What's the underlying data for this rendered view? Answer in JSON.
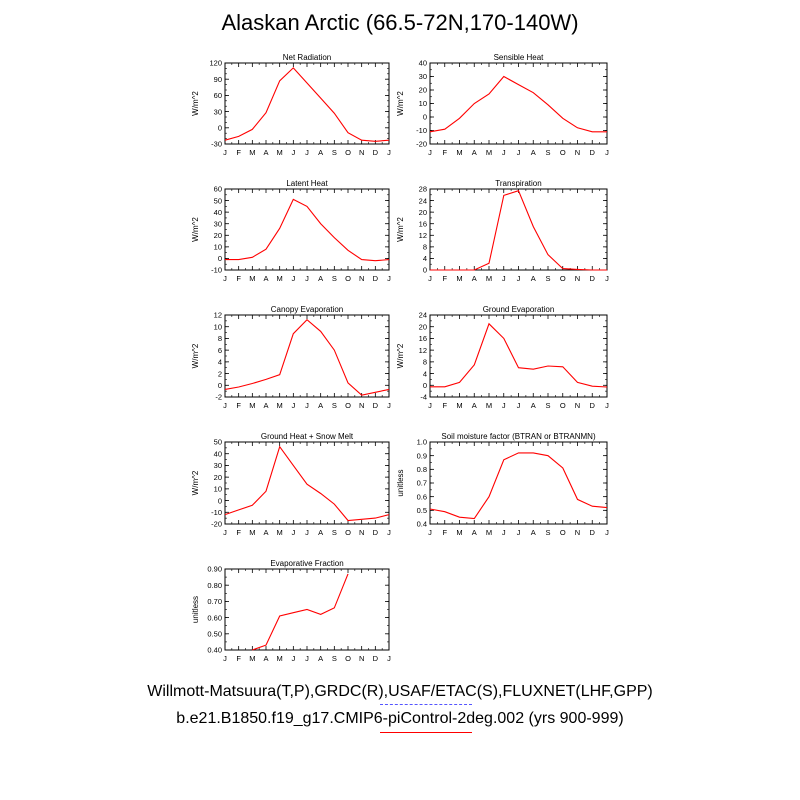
{
  "page": {
    "title": "Alaskan Arctic (66.5-72N,170-140W)"
  },
  "months": [
    "J",
    "F",
    "M",
    "A",
    "M",
    "J",
    "J",
    "A",
    "S",
    "O",
    "N",
    "D",
    "J"
  ],
  "legend": {
    "obs_label": "Willmott-Matsuura(T,P),GRDC(R),USAF/ETAC(S),FLUXNET(LHF,GPP)",
    "obs_color": "#5555ff",
    "model_label": "b.e21.B1850.f19_g17.CMIP6-piControl-2deg.002 (yrs 900-999)",
    "model_color": "#ff0000"
  },
  "chart_data": [
    {
      "type": "line",
      "title": "Net Radiation",
      "ylabel": "W/m^2",
      "ylim": [
        -30,
        120
      ],
      "yticks": [
        "-30",
        "0",
        "30",
        "60",
        "90",
        "120"
      ],
      "ytick_values": [
        -30,
        0,
        30,
        60,
        90,
        120
      ],
      "minor_step": 10,
      "series": [
        {
          "color": "#ff0000",
          "values": [
            -23,
            -16,
            -3,
            28,
            87,
            111,
            83,
            55,
            27,
            -9,
            -23,
            -25,
            -23
          ]
        }
      ]
    },
    {
      "type": "line",
      "title": "Sensible Heat",
      "ylabel": "W/m^2",
      "ylim": [
        -20,
        40
      ],
      "yticks": [
        "-20",
        "-10",
        "0",
        "10",
        "20",
        "30",
        "40"
      ],
      "ytick_values": [
        -20,
        -10,
        0,
        10,
        20,
        30,
        40
      ],
      "minor_step": 5,
      "series": [
        {
          "color": "#ff0000",
          "values": [
            -11,
            -9,
            -1,
            10,
            17,
            30,
            24,
            18,
            9,
            -1,
            -8,
            -11,
            -11
          ]
        }
      ]
    },
    {
      "type": "line",
      "title": "Latent Heat",
      "ylabel": "W/m^2",
      "ylim": [
        -10,
        60
      ],
      "yticks": [
        "-10",
        "0",
        "10",
        "20",
        "30",
        "40",
        "50",
        "60"
      ],
      "ytick_values": [
        -10,
        0,
        10,
        20,
        30,
        40,
        50,
        60
      ],
      "minor_step": 5,
      "series": [
        {
          "color": "#ff0000",
          "values": [
            -1,
            -1,
            1,
            8,
            26,
            51,
            45,
            30,
            18,
            7,
            -1,
            -2,
            -1
          ]
        }
      ]
    },
    {
      "type": "line",
      "title": "Transpiration",
      "ylabel": "W/m^2",
      "ylim": [
        0,
        28
      ],
      "yticks": [
        "0",
        "4",
        "8",
        "12",
        "16",
        "20",
        "24",
        "28"
      ],
      "ytick_values": [
        0,
        4,
        8,
        12,
        16,
        20,
        24,
        28
      ],
      "minor_step": 2,
      "series": [
        {
          "color": "#ff0000",
          "values": [
            0,
            0,
            0,
            0,
            2.3,
            25.8,
            27.4,
            15,
            5.3,
            0.5,
            0.2,
            0,
            0
          ]
        }
      ]
    },
    {
      "type": "line",
      "title": "Canopy Evaporation",
      "ylabel": "W/m^2",
      "ylim": [
        -2,
        12
      ],
      "yticks": [
        "-2",
        "0",
        "2",
        "4",
        "6",
        "8",
        "10",
        "12"
      ],
      "ytick_values": [
        -2,
        0,
        2,
        4,
        6,
        8,
        10,
        12
      ],
      "minor_step": 1,
      "series": [
        {
          "color": "#ff0000",
          "values": [
            -0.7,
            -0.3,
            0.3,
            1,
            1.8,
            8.8,
            11.2,
            9.2,
            6,
            0.4,
            -1.7,
            -1.2,
            -0.7
          ]
        }
      ]
    },
    {
      "type": "line",
      "title": "Ground Evaporation",
      "ylabel": "W/m^2",
      "ylim": [
        -4,
        24
      ],
      "yticks": [
        "-4",
        "0",
        "4",
        "8",
        "12",
        "16",
        "20",
        "24"
      ],
      "ytick_values": [
        -4,
        0,
        4,
        8,
        12,
        16,
        20,
        24
      ],
      "minor_step": 2,
      "series": [
        {
          "color": "#ff0000",
          "values": [
            -0.5,
            -0.5,
            1,
            7,
            21,
            16,
            6,
            5.5,
            6.6,
            6.3,
            1,
            -0.3,
            -0.6
          ]
        }
      ]
    },
    {
      "type": "line",
      "title": "Ground Heat + Snow Melt",
      "ylabel": "W/m^2",
      "ylim": [
        -20,
        50
      ],
      "yticks": [
        "-20",
        "-10",
        "0",
        "10",
        "20",
        "30",
        "40",
        "50"
      ],
      "ytick_values": [
        -20,
        -10,
        0,
        10,
        20,
        30,
        40,
        50
      ],
      "minor_step": 5,
      "series": [
        {
          "color": "#ff0000",
          "values": [
            -12,
            -8,
            -4,
            8,
            46,
            30,
            14,
            6,
            -3,
            -17,
            -16,
            -15,
            -12
          ]
        }
      ]
    },
    {
      "type": "line",
      "title": "Soil moisture factor (BTRAN or BTRANMN)",
      "ylabel": "unitless",
      "ylim": [
        0.4,
        1.0
      ],
      "yticks": [
        "0.4",
        "0.5",
        "0.6",
        "0.7",
        "0.8",
        "0.9",
        "1.0"
      ],
      "ytick_values": [
        0.4,
        0.5,
        0.6,
        0.7,
        0.8,
        0.9,
        1.0
      ],
      "minor_step": 0.05,
      "series": [
        {
          "color": "#ff0000",
          "values": [
            0.51,
            0.49,
            0.45,
            0.44,
            0.6,
            0.87,
            0.92,
            0.92,
            0.9,
            0.81,
            0.58,
            0.53,
            0.52
          ]
        }
      ]
    },
    {
      "type": "line",
      "title": "Evaporative Fraction",
      "ylabel": "unitless",
      "ylim": [
        0.4,
        0.9
      ],
      "yticks": [
        "0.40",
        "0.50",
        "0.60",
        "0.70",
        "0.80",
        "0.90"
      ],
      "ytick_values": [
        0.4,
        0.5,
        0.6,
        0.7,
        0.8,
        0.9
      ],
      "minor_step": 0.05,
      "series": [
        {
          "color": "#ff0000",
          "values": [
            null,
            null,
            0.4,
            0.43,
            0.61,
            0.63,
            0.65,
            0.62,
            0.66,
            0.87,
            null,
            null,
            null
          ]
        }
      ]
    }
  ]
}
